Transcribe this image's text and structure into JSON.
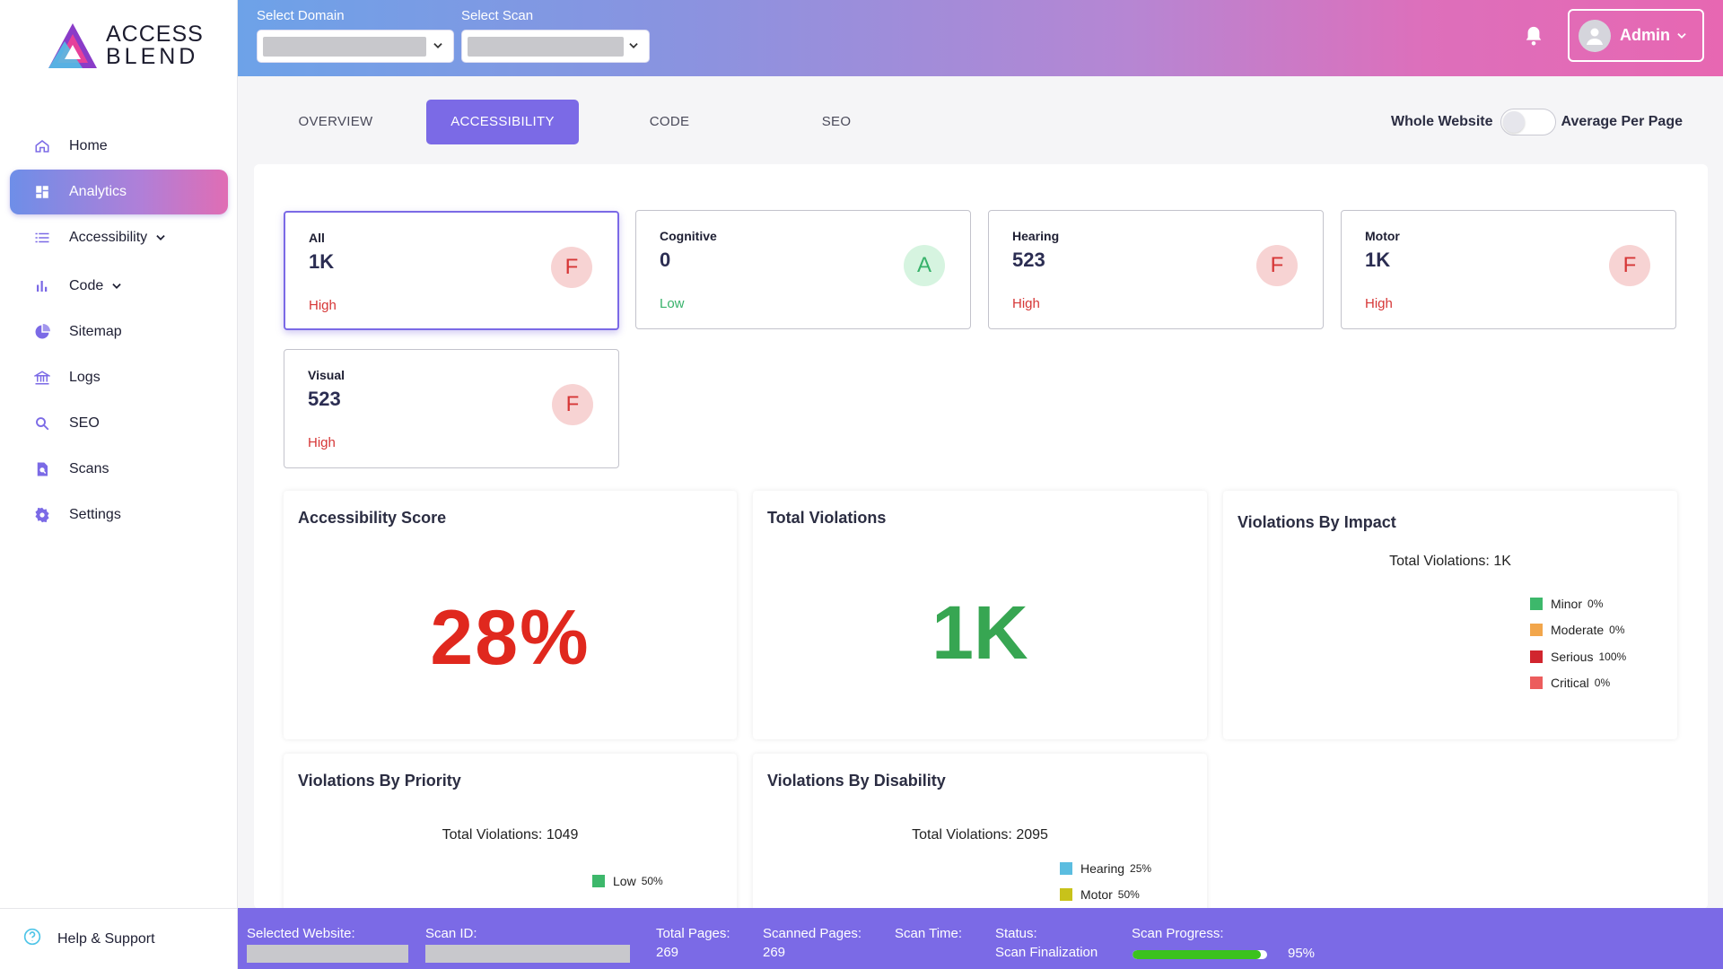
{
  "brand": {
    "line1": "ACCESS",
    "line2": "BLEND"
  },
  "sidebar": {
    "items": [
      {
        "label": "Home",
        "icon": "home-icon"
      },
      {
        "label": "Analytics",
        "icon": "dashboard-icon"
      },
      {
        "label": "Accessibility",
        "icon": "list-icon"
      },
      {
        "label": "Code",
        "icon": "bar-chart-icon"
      },
      {
        "label": "Sitemap",
        "icon": "pie-chart-icon"
      },
      {
        "label": "Logs",
        "icon": "bank-icon"
      },
      {
        "label": "SEO",
        "icon": "search-icon"
      },
      {
        "label": "Scans",
        "icon": "scan-icon"
      },
      {
        "label": "Settings",
        "icon": "gear-icon"
      }
    ],
    "help": "Help & Support"
  },
  "header": {
    "select_domain_label": "Select Domain",
    "select_scan_label": "Select Scan",
    "user": "Admin"
  },
  "tabs": [
    "OVERVIEW",
    "ACCESSIBILITY",
    "CODE",
    "SEO"
  ],
  "toggle": {
    "left": "Whole Website",
    "right": "Average Per Page"
  },
  "disabilities": [
    {
      "name": "All",
      "value": "1K",
      "level": "High",
      "grade": "F"
    },
    {
      "name": "Cognitive",
      "value": "0",
      "level": "Low",
      "grade": "A"
    },
    {
      "name": "Hearing",
      "value": "523",
      "level": "High",
      "grade": "F"
    },
    {
      "name": "Motor",
      "value": "1K",
      "level": "High",
      "grade": "F"
    },
    {
      "name": "Visual",
      "value": "523",
      "level": "High",
      "grade": "F"
    }
  ],
  "score": {
    "title": "Accessibility Score",
    "value": "28%"
  },
  "total": {
    "title": "Total Violations",
    "value": "1K"
  },
  "impact": {
    "title": "Violations By Impact",
    "total": "Total Violations: 1K",
    "legend": [
      {
        "name": "Minor",
        "pct": "0%",
        "color": "#3db86b"
      },
      {
        "name": "Moderate",
        "pct": "0%",
        "color": "#f2a64b"
      },
      {
        "name": "Serious",
        "pct": "100%",
        "color": "#d1252e"
      },
      {
        "name": "Critical",
        "pct": "0%",
        "color": "#ec5d5d"
      }
    ]
  },
  "priority": {
    "title": "Violations By Priority",
    "total": "Total Violations: 1049",
    "legend": [
      {
        "name": "Low",
        "pct": "50%",
        "color": "#3db86b"
      }
    ]
  },
  "disability": {
    "title": "Violations By Disability",
    "total": "Total Violations: 2095",
    "legend": [
      {
        "name": "Hearing",
        "pct": "25%",
        "color": "#5bbde0"
      },
      {
        "name": "Motor",
        "pct": "50%",
        "color": "#c8c21a"
      }
    ]
  },
  "status": {
    "website_label": "Selected Website:",
    "scan_id_label": "Scan ID:",
    "total_pages_label": "Total Pages:",
    "total_pages": "269",
    "scanned_pages_label": "Scanned Pages:",
    "scanned_pages": "269",
    "scan_time_label": "Scan Time:",
    "status_label": "Status:",
    "status_value": "Scan Finalization",
    "progress_label": "Scan Progress:",
    "progress_pct": "95%",
    "progress": 0.95
  }
}
